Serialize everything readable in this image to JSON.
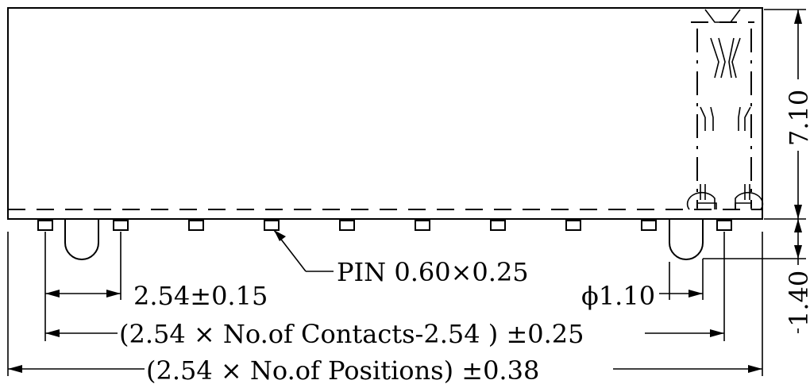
{
  "labels": {
    "pin": "PIN 0.60×0.25",
    "pitch": "2.54±0.15",
    "diameter": "ϕ1.10",
    "contacts": "(2.54 × No.of Contacts-2.54 ) ±0.25",
    "positions": "(2.54 × No.of Positions) ±0.38",
    "height_body": "7.10",
    "height_pin": "1.40"
  }
}
